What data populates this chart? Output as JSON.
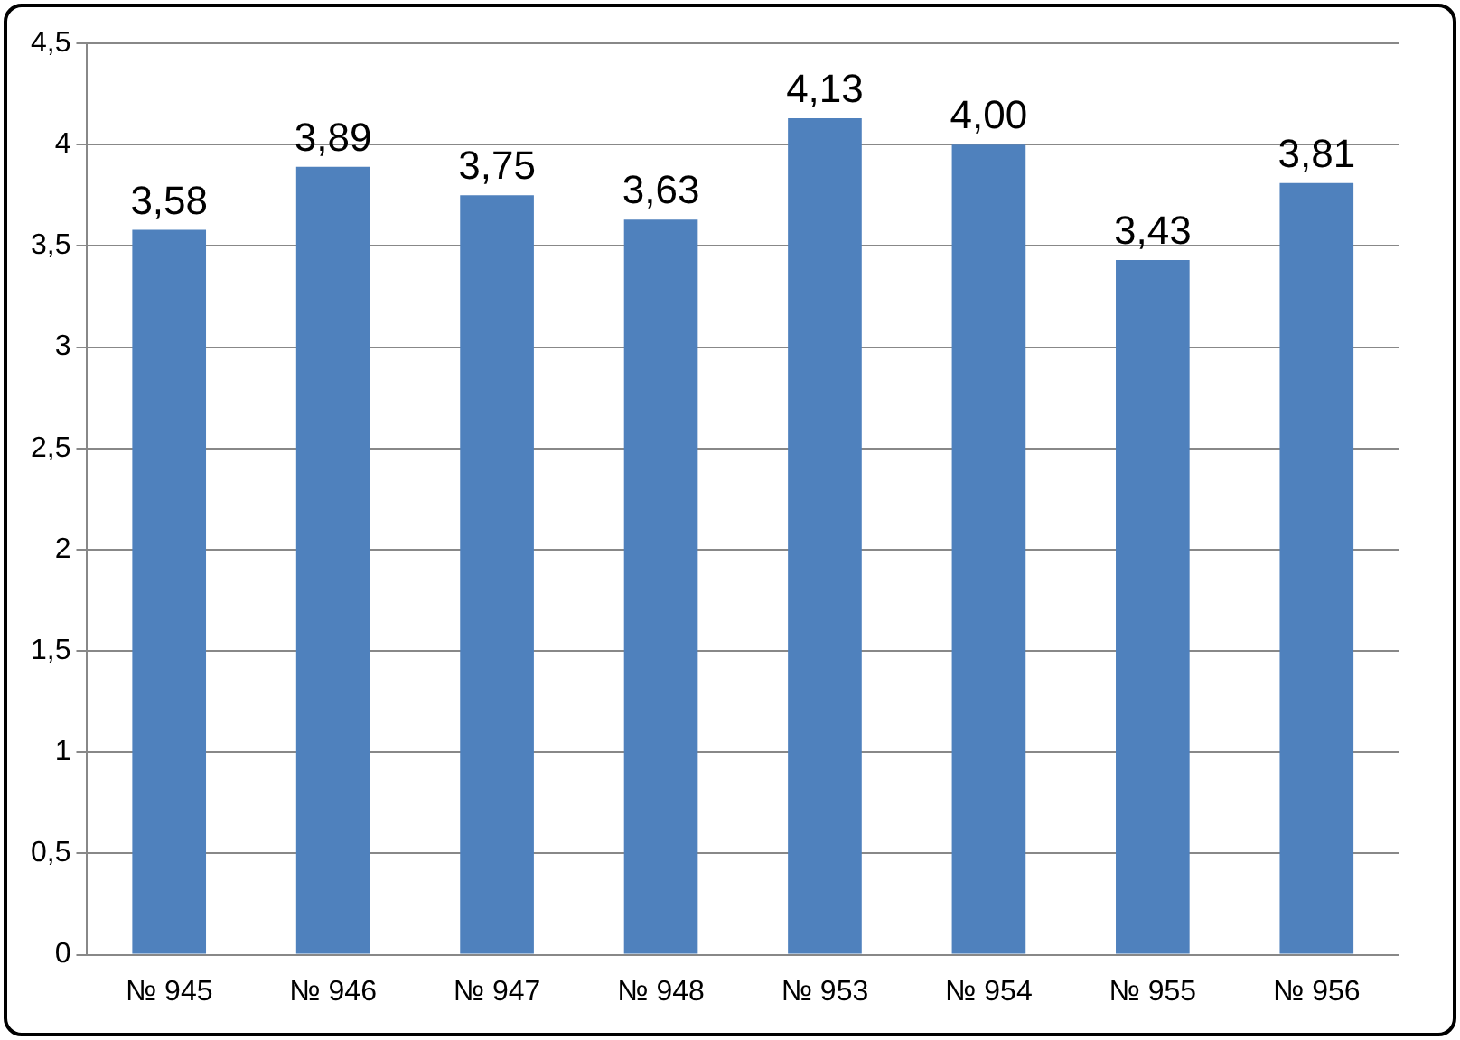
{
  "chart_data": {
    "type": "bar",
    "categories": [
      "№ 945",
      "№ 946",
      "№ 947",
      "№ 948",
      "№ 953",
      "№ 954",
      "№ 955",
      "№ 956"
    ],
    "values": [
      3.58,
      3.89,
      3.75,
      3.63,
      4.13,
      4.0,
      3.43,
      3.81
    ],
    "value_labels": [
      "3,58",
      "3,89",
      "3,75",
      "3,63",
      "4,13",
      "4,00",
      "3,43",
      "3,81"
    ],
    "color": "#4f81bd",
    "ylim": [
      0,
      4.5
    ],
    "yticks": [
      0,
      {
        "value": 0.5,
        "label": "0,5"
      },
      1,
      {
        "value": 1.5,
        "label": "1,5"
      },
      2,
      {
        "value": 2.5,
        "label": "2,5"
      },
      3,
      {
        "value": 3.5,
        "label": "3,5"
      },
      4,
      {
        "value": 4.5,
        "label": "4,5"
      }
    ],
    "grid": "y",
    "legend": false
  }
}
